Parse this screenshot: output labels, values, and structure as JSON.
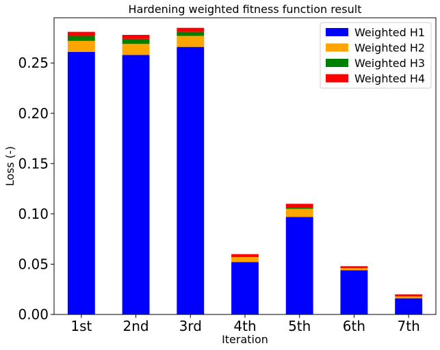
{
  "chart_data": {
    "type": "bar",
    "stacked": true,
    "title": "Hardening weighted fitness function result",
    "xlabel": "Iteration",
    "ylabel": "Loss (-)",
    "categories": [
      "1st",
      "2nd",
      "3rd",
      "4th",
      "5th",
      "6th",
      "7th"
    ],
    "ylim": [
      0,
      0.295
    ],
    "yticks": [
      "0.00",
      "0.05",
      "0.10",
      "0.15",
      "0.20",
      "0.25"
    ],
    "ytick_values": [
      0,
      0.05,
      0.1,
      0.15,
      0.2,
      0.25
    ],
    "grid": false,
    "legend_position": "top-right",
    "series": [
      {
        "name": "Weighted H1",
        "color": "#0000ff",
        "values": [
          0.261,
          0.258,
          0.266,
          0.052,
          0.097,
          0.044,
          0.016
        ]
      },
      {
        "name": "Weighted H2",
        "color": "#ffa500",
        "values": [
          0.011,
          0.011,
          0.011,
          0.005,
          0.008,
          0.002,
          0.002
        ]
      },
      {
        "name": "Weighted H3",
        "color": "#008000",
        "values": [
          0.005,
          0.005,
          0.004,
          0.0,
          0.001,
          0.0,
          0.0
        ]
      },
      {
        "name": "Weighted H4",
        "color": "#ff0000",
        "values": [
          0.004,
          0.004,
          0.004,
          0.003,
          0.004,
          0.002,
          0.002
        ]
      }
    ]
  }
}
